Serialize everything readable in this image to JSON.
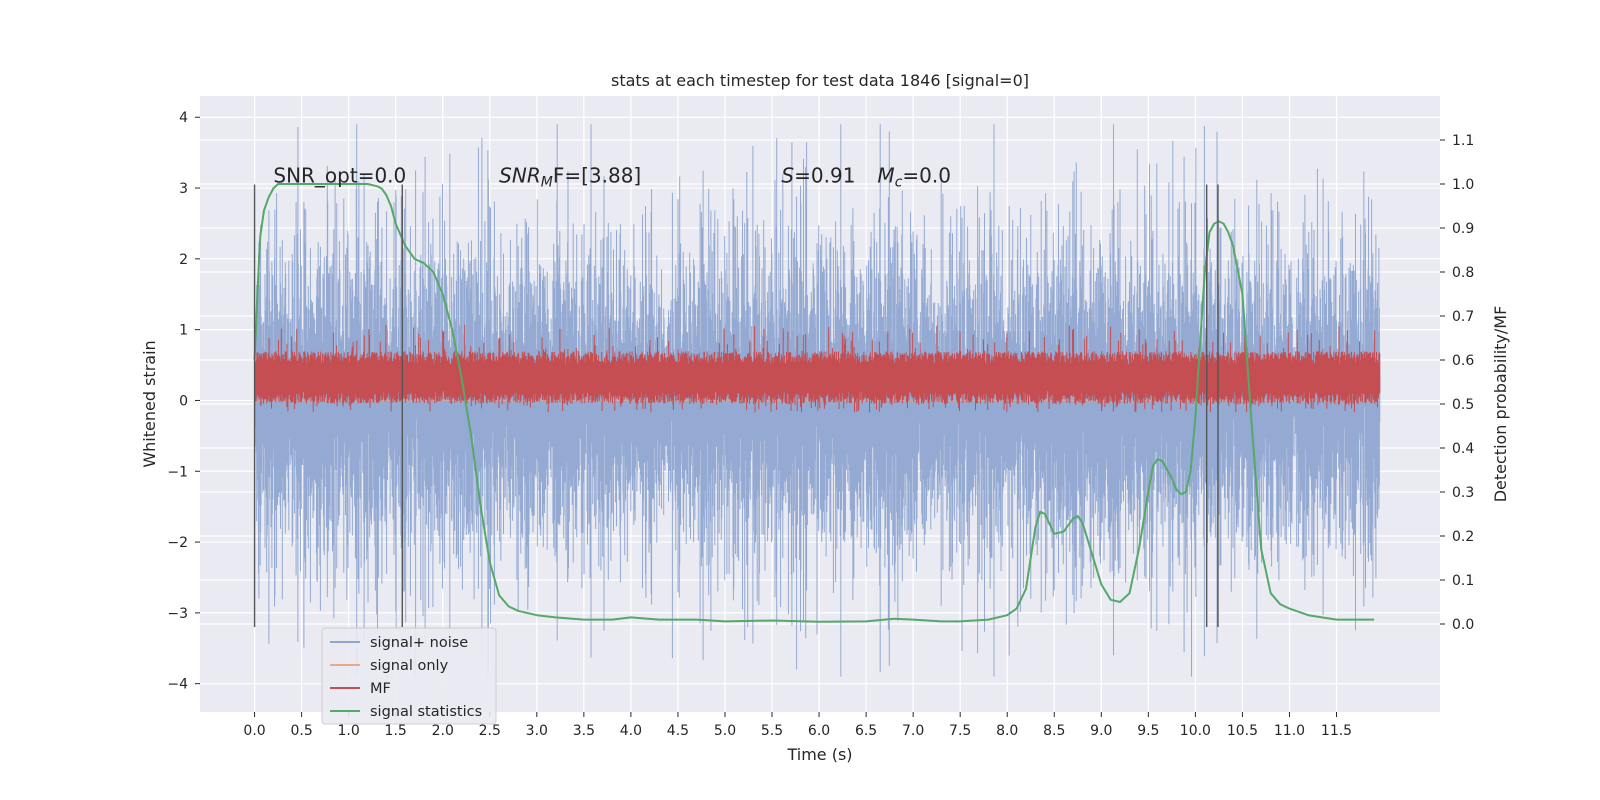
{
  "chart_data": {
    "type": "line",
    "title": "stats at each timestep for test data 1846 [signal=0]",
    "xlabel": "Time (s)",
    "ylabel": "Whitened strain",
    "ylabel_right": "Detection probability/MF",
    "xlim": [
      -0.58,
      12.6
    ],
    "ylim": [
      -4.4,
      4.3
    ],
    "ylim_right": [
      -0.2,
      1.2
    ],
    "x_ticks": [
      "0.0",
      "0.5",
      "1.0",
      "1.5",
      "2.0",
      "2.5",
      "3.0",
      "3.5",
      "4.0",
      "4.5",
      "5.0",
      "5.5",
      "6.0",
      "6.5",
      "7.0",
      "7.5",
      "8.0",
      "8.5",
      "9.0",
      "9.5",
      "10.0",
      "10.5",
      "11.0",
      "11.5"
    ],
    "y_ticks": [
      "−4",
      "−3",
      "−2",
      "−1",
      "0",
      "1",
      "2",
      "3",
      "4"
    ],
    "y_ticks_right": [
      "0.0",
      "0.1",
      "0.2",
      "0.3",
      "0.4",
      "0.5",
      "0.6",
      "0.7",
      "0.8",
      "0.9",
      "1.0",
      "1.1"
    ],
    "grid": true,
    "legend_position": "lower-left",
    "annotations": {
      "snr_opt": "SNR_opt=0.0",
      "snr_mf_sym": "SNR",
      "snr_mf_sub": "M",
      "snr_mf_rest": "F=[3.88]",
      "s_sym": "S",
      "s_val": "=0.91",
      "mc_sym": "M",
      "mc_sub": "c",
      "mc_val": "=0.0"
    },
    "vertical_markers_x": [
      0.0,
      1.57,
      10.12,
      10.24
    ],
    "vertical_marker_yrange": [
      -3.2,
      3.05
    ],
    "series": [
      {
        "name": "signal+ noise",
        "color": "#8fa6d1",
        "axis": "left",
        "x_range": [
          0.0,
          11.96
        ],
        "envelope_upper": 2.9,
        "envelope_lower": -2.8,
        "description_values": [
          0.0,
          1.2,
          -1.1,
          2.4,
          -2.3,
          3.6,
          -3.4,
          3.9,
          -3.9
        ]
      },
      {
        "name": "signal only",
        "color": "#e8a98a",
        "axis": "left",
        "x": [
          0.0,
          11.96
        ],
        "y": [
          0.0,
          0.0
        ]
      },
      {
        "name": "MF",
        "color": "#c44e52",
        "axis": "right",
        "x_range": [
          0.0,
          11.96
        ],
        "band_lower": 0.5,
        "band_upper": 0.62,
        "peak_max": 0.68
      },
      {
        "name": "signal statistics",
        "color": "#55a868",
        "axis": "right",
        "x": [
          0.0,
          0.03,
          0.06,
          0.1,
          0.15,
          0.2,
          0.25,
          0.3,
          0.4,
          0.5,
          0.7,
          1.0,
          1.2,
          1.3,
          1.35,
          1.4,
          1.45,
          1.5,
          1.6,
          1.7,
          1.8,
          1.9,
          2.0,
          2.1,
          2.2,
          2.3,
          2.4,
          2.5,
          2.6,
          2.7,
          2.8,
          3.0,
          3.2,
          3.5,
          3.8,
          4.0,
          4.3,
          4.7,
          5.0,
          5.5,
          6.0,
          6.5,
          6.8,
          7.0,
          7.3,
          7.5,
          7.8,
          8.0,
          8.1,
          8.2,
          8.25,
          8.3,
          8.35,
          8.4,
          8.5,
          8.6,
          8.7,
          8.75,
          8.8,
          8.9,
          9.0,
          9.1,
          9.2,
          9.3,
          9.4,
          9.5,
          9.55,
          9.6,
          9.65,
          9.7,
          9.75,
          9.8,
          9.85,
          9.9,
          9.95,
          10.0,
          10.05,
          10.1,
          10.15,
          10.2,
          10.25,
          10.3,
          10.35,
          10.4,
          10.5,
          10.6,
          10.7,
          10.8,
          10.9,
          11.0,
          11.2,
          11.5,
          11.9
        ],
        "y": [
          0.6,
          0.75,
          0.88,
          0.94,
          0.97,
          0.99,
          1.0,
          1.0,
          1.0,
          1.0,
          1.0,
          1.0,
          1.0,
          0.995,
          0.99,
          0.975,
          0.95,
          0.91,
          0.86,
          0.83,
          0.82,
          0.8,
          0.75,
          0.67,
          0.56,
          0.43,
          0.27,
          0.14,
          0.065,
          0.04,
          0.03,
          0.02,
          0.015,
          0.01,
          0.01,
          0.015,
          0.01,
          0.01,
          0.006,
          0.008,
          0.005,
          0.006,
          0.012,
          0.01,
          0.006,
          0.006,
          0.01,
          0.02,
          0.035,
          0.08,
          0.15,
          0.22,
          0.255,
          0.25,
          0.205,
          0.21,
          0.24,
          0.245,
          0.23,
          0.16,
          0.09,
          0.055,
          0.05,
          0.07,
          0.17,
          0.3,
          0.36,
          0.375,
          0.37,
          0.35,
          0.33,
          0.305,
          0.295,
          0.3,
          0.35,
          0.47,
          0.64,
          0.8,
          0.89,
          0.91,
          0.915,
          0.91,
          0.89,
          0.86,
          0.75,
          0.45,
          0.17,
          0.07,
          0.045,
          0.035,
          0.02,
          0.01,
          0.01
        ]
      }
    ]
  }
}
